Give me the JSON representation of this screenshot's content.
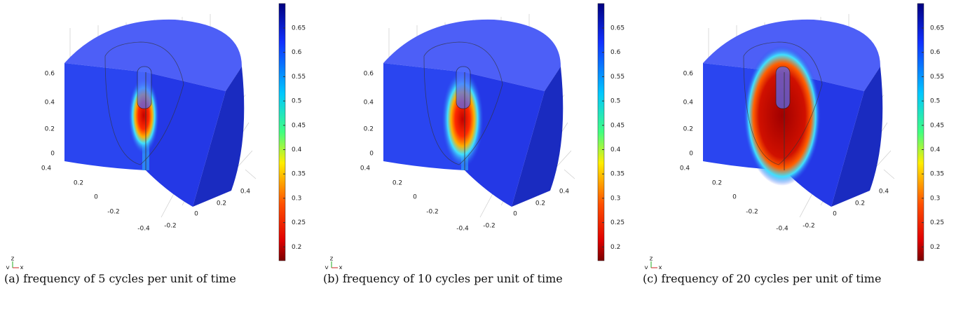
{
  "figure": {
    "panels": [
      {
        "caption": "(a) frequency of 5 cycles per unit of time",
        "colorbar_ticks": [
          "0.65",
          "0.6",
          "0.55",
          "0.5",
          "0.45",
          "0.4",
          "0.35",
          "0.3",
          "0.25",
          "0.2"
        ],
        "z_ticks": [
          "0.6",
          "0.4",
          "0.2",
          "0"
        ],
        "y_ticks": [
          "0.4",
          "0.2",
          "0",
          "-0.2",
          "-0.4"
        ],
        "x_ticks": [
          "-0.2",
          "0",
          "0.2",
          "0.4"
        ],
        "triad": [
          "y",
          "z",
          "x"
        ]
      },
      {
        "caption": "(b) frequency of 10 cycles per unit of time",
        "colorbar_ticks": [
          "0.65",
          "0.6",
          "0.55",
          "0.5",
          "0.45",
          "0.4",
          "0.35",
          "0.3",
          "0.25",
          "0.2"
        ],
        "z_ticks": [
          "0.6",
          "0.4",
          "0.2",
          "0"
        ],
        "y_ticks": [
          "0.4",
          "0.2",
          "0",
          "-0.2",
          "-0.4"
        ],
        "x_ticks": [
          "-0.2",
          "0",
          "0.2",
          "0.4"
        ],
        "triad": [
          "y",
          "z",
          "x"
        ]
      },
      {
        "caption": "(c) frequency of 20 cycles per unit of time",
        "colorbar_ticks": [
          "0.65",
          "0.6",
          "0.55",
          "0.5",
          "0.45",
          "0.4",
          "0.35",
          "0.3",
          "0.25",
          "0.2"
        ],
        "z_ticks": [
          "0.6",
          "0.4",
          "0.2",
          "0"
        ],
        "y_ticks": [
          "0.4",
          "0.2",
          "0",
          "-0.2",
          "-0.4"
        ],
        "x_ticks": [
          "-0.2",
          "0",
          "0.2",
          "0.4"
        ],
        "triad": [
          "y",
          "z",
          "x"
        ]
      }
    ]
  }
}
